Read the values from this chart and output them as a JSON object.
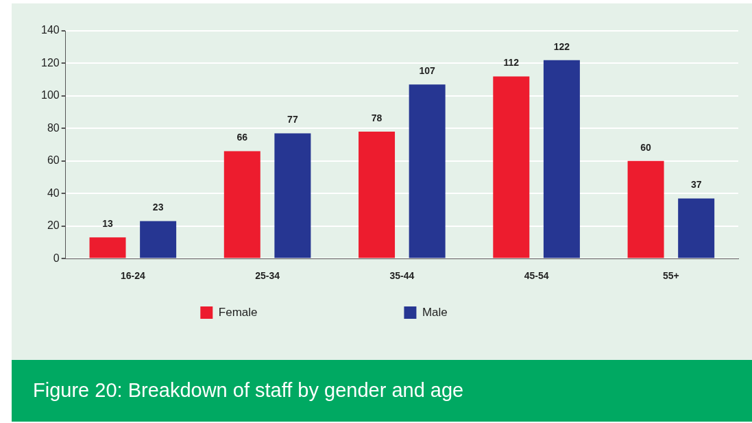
{
  "chart_data": {
    "type": "bar",
    "title": "Figure 20: Breakdown of staff by gender and age",
    "categories": [
      "16-24",
      "25-34",
      "35-44",
      "45-54",
      "55+"
    ],
    "series": [
      {
        "name": "Female",
        "color": "#ed1c2e",
        "values": [
          13,
          66,
          78,
          112,
          60
        ]
      },
      {
        "name": "Male",
        "color": "#263692",
        "values": [
          23,
          77,
          107,
          122,
          37
        ]
      }
    ],
    "ylim": [
      0,
      140
    ],
    "yticks": [
      0,
      20,
      40,
      60,
      80,
      100,
      120,
      140
    ],
    "grid": "y",
    "legend": "bottom",
    "data_labels": true
  }
}
